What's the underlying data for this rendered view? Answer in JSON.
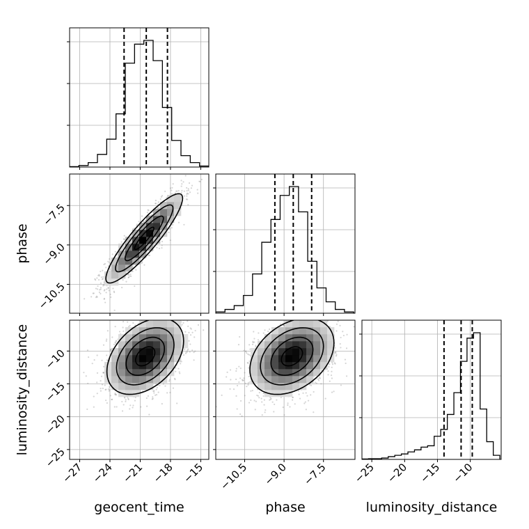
{
  "chart_data": {
    "type": "corner",
    "parameters": [
      "geocent_time",
      "phase",
      "luminosity_distance"
    ],
    "axis_labels": {
      "x": [
        "geocent_time",
        "phase",
        "luminosity_distance"
      ],
      "y": [
        "phase",
        "luminosity_distance"
      ]
    },
    "ranges": {
      "geocent_time": [
        -28,
        -14.2
      ],
      "phase": [
        -11.6,
        -6.3
      ],
      "luminosity_distance": [
        -26.5,
        -5.3
      ]
    },
    "ticks": {
      "geocent_time": {
        "values": [
          -27,
          -24,
          -21,
          -18,
          -15
        ],
        "labels": [
          "−27",
          "−24",
          "−21",
          "−18",
          "−15"
        ]
      },
      "phase": {
        "values": [
          -10.5,
          -9.0,
          -7.5
        ],
        "labels": [
          "−10.5",
          "−9.0",
          "−7.5"
        ]
      },
      "luminosity_distance": {
        "values": [
          -25,
          -20,
          -15,
          -10
        ],
        "labels": [
          "−25",
          "−20",
          "−15",
          "−10"
        ]
      }
    },
    "grid": true,
    "histograms": [
      {
        "param": "geocent_time",
        "bin_edges": [
          -28,
          -27.08,
          -26.16,
          -25.24,
          -24.32,
          -23.4,
          -22.48,
          -21.56,
          -20.64,
          -19.72,
          -18.8,
          -17.88,
          -16.96,
          -16.04,
          -15.12,
          -14.2
        ],
        "counts": [
          0.3,
          1.2,
          3.5,
          10,
          22,
          42,
          82,
          97,
          100,
          84,
          47,
          21,
          9,
          3.5,
          0.8
        ],
        "quantiles": [
          -22.6,
          -20.4,
          -18.3
        ]
      },
      {
        "param": "phase",
        "bin_edges": [
          -11.6,
          -11.25,
          -10.9,
          -10.55,
          -10.2,
          -9.85,
          -9.5,
          -9.15,
          -8.8,
          -8.45,
          -8.1,
          -7.75,
          -7.4,
          -7.05,
          -6.7,
          -6.35
        ],
        "counts": [
          1,
          3,
          6,
          14,
          31,
          56,
          74,
          93,
          100,
          80,
          41,
          20,
          9,
          3,
          1
        ],
        "quantiles": [
          -9.35,
          -8.65,
          -7.95
        ]
      },
      {
        "param": "luminosity_distance",
        "bin_edges": [
          -26.5,
          -25.5,
          -24.5,
          -23.5,
          -22.5,
          -21.5,
          -20.5,
          -19.5,
          -18.5,
          -17.5,
          -16.5,
          -15.5,
          -14.5,
          -13.5,
          -12.5,
          -11.5,
          -10.5,
          -9.5,
          -8.5,
          -7.5,
          -6.5,
          -5.5
        ],
        "counts": [
          0.3,
          0.5,
          0.5,
          1,
          2,
          3,
          4,
          5.5,
          7,
          9,
          10,
          17,
          22,
          33,
          49,
          72,
          89,
          93,
          37,
          13,
          3
        ],
        "quantiles": [
          -14.0,
          -11.4,
          -9.7
        ]
      }
    ],
    "density_panels": [
      {
        "x": "geocent_time",
        "y": "phase",
        "center": [
          -20.6,
          -8.75
        ],
        "spread": [
          1.9,
          0.85
        ],
        "correlation": 0.9,
        "n_points": 1600,
        "contour_levels": [
          0.118,
          0.393,
          0.675,
          0.865
        ]
      },
      {
        "x": "geocent_time",
        "y": "luminosity_distance",
        "center": [
          -20.5,
          -10.8
        ],
        "spread": [
          1.9,
          2.9
        ],
        "correlation": 0.4,
        "n_points": 1600,
        "contour_levels": [
          0.118,
          0.393,
          0.675,
          0.865
        ]
      },
      {
        "x": "phase",
        "y": "luminosity_distance",
        "center": [
          -8.7,
          -10.8
        ],
        "spread": [
          0.8,
          2.9
        ],
        "correlation": 0.35,
        "n_points": 1600,
        "contour_levels": [
          0.118,
          0.393,
          0.675,
          0.865
        ]
      }
    ]
  }
}
